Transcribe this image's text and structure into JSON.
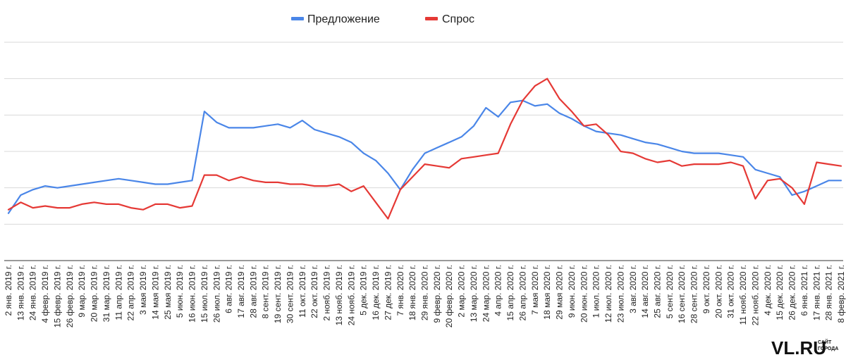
{
  "chart_data": {
    "type": "line",
    "title": "",
    "xlabel": "",
    "ylabel": "",
    "grid": true,
    "legend_position": "top-center",
    "ylim": [
      -1,
      5
    ],
    "categories": [
      "2 янв. 2019 г.",
      "13 янв. 2019 г.",
      "24 янв. 2019 г.",
      "4 февр. 2019 г.",
      "15 февр. 2019 г.",
      "26 февр. 2019 г.",
      "9 мар. 2019 г.",
      "20 мар. 2019 г.",
      "31 мар. 2019 г.",
      "11 апр. 2019 г.",
      "22 апр. 2019 г.",
      "3 мая 2019 г.",
      "14 мая 2019 г.",
      "25 мая 2019 г.",
      "5 июн. 2019 г.",
      "16 июн. 2019 г.",
      "15 июл. 2019 г.",
      "26 июл. 2019 г.",
      "6 авг. 2019 г.",
      "17 авг. 2019 г.",
      "28 авг. 2019 г.",
      "8 сент. 2019 г.",
      "19 сент. 2019 г.",
      "30 сент. 2019 г.",
      "11 окт. 2019 г.",
      "22 окт. 2019 г.",
      "2 нояб. 2019 г.",
      "13 нояб. 2019 г.",
      "24 нояб. 2019 г.",
      "5 дек. 2019 г.",
      "16 дек. 2019 г.",
      "27 дек. 2019 г.",
      "7 янв. 2020 г.",
      "18 янв. 2020 г.",
      "29 янв. 2020 г.",
      "9 февр. 2020 г.",
      "20 февр. 2020 г.",
      "2 мар. 2020 г.",
      "13 мар. 2020 г.",
      "24 мар. 2020 г.",
      "4 апр. 2020 г.",
      "15 апр. 2020 г.",
      "26 апр. 2020 г.",
      "7 мая 2020 г.",
      "18 мая 2020 г.",
      "29 мая 2020 г.",
      "9 июн. 2020 г.",
      "20 июн. 2020 г.",
      "1 июл. 2020 г.",
      "12 июл. 2020 г.",
      "23 июл. 2020 г.",
      "3 авг. 2020 г.",
      "14 авг. 2020 г.",
      "25 авг. 2020 г.",
      "5 сент. 2020 г.",
      "16 сент. 2020 г.",
      "28 сент. 2020 г.",
      "9 окт. 2020 г.",
      "20 окт. 2020 г.",
      "31 окт. 2020 г.",
      "11 нояб. 2020 г.",
      "22 нояб. 2020 г.",
      "4 дек. 2020 г.",
      "15 дек. 2020 г.",
      "26 дек. 2020 г.",
      "6 янв. 2021 г.",
      "17 янв. 2021 г.",
      "28 янв. 2021 г.",
      "8 февр. 2021 г."
    ],
    "series": [
      {
        "name": "Предложение",
        "color": "#4a86e8",
        "values": [
          0.3,
          0.8,
          0.95,
          1.05,
          1.0,
          1.05,
          1.1,
          1.15,
          1.2,
          1.25,
          1.2,
          1.15,
          1.1,
          1.1,
          1.15,
          1.2,
          3.1,
          2.8,
          2.65,
          2.65,
          2.65,
          2.7,
          2.75,
          2.65,
          2.85,
          2.6,
          2.5,
          2.4,
          2.25,
          1.95,
          1.75,
          1.4,
          0.95,
          1.5,
          1.95,
          2.1,
          2.25,
          2.4,
          2.7,
          3.2,
          2.95,
          3.35,
          3.4,
          3.25,
          3.3,
          3.05,
          2.9,
          2.7,
          2.55,
          2.5,
          2.45,
          2.35,
          2.25,
          2.2,
          2.1,
          2.0,
          1.95,
          1.95,
          1.95,
          1.9,
          1.85,
          1.5,
          1.4,
          1.3,
          0.8,
          0.9,
          1.05,
          1.2,
          1.2
        ]
      },
      {
        "name": "Спрос",
        "color": "#e53935",
        "values": [
          0.4,
          0.6,
          0.45,
          0.5,
          0.45,
          0.45,
          0.55,
          0.6,
          0.55,
          0.55,
          0.45,
          0.4,
          0.55,
          0.55,
          0.45,
          0.5,
          1.35,
          1.35,
          1.2,
          1.3,
          1.2,
          1.15,
          1.15,
          1.1,
          1.1,
          1.05,
          1.05,
          1.1,
          0.9,
          1.05,
          0.6,
          0.15,
          0.95,
          1.3,
          1.65,
          1.6,
          1.55,
          1.8,
          1.85,
          1.9,
          1.95,
          2.75,
          3.4,
          3.8,
          4.0,
          3.45,
          3.1,
          2.7,
          2.75,
          2.45,
          2.0,
          1.95,
          1.8,
          1.7,
          1.75,
          1.6,
          1.65,
          1.65,
          1.65,
          1.7,
          1.6,
          0.7,
          1.2,
          1.25,
          1.0,
          0.55,
          1.7,
          1.65,
          1.6
        ]
      }
    ]
  },
  "watermark": {
    "main": "VL.RU",
    "top": "САЙТ",
    "bottom": "ГОРОДА"
  }
}
